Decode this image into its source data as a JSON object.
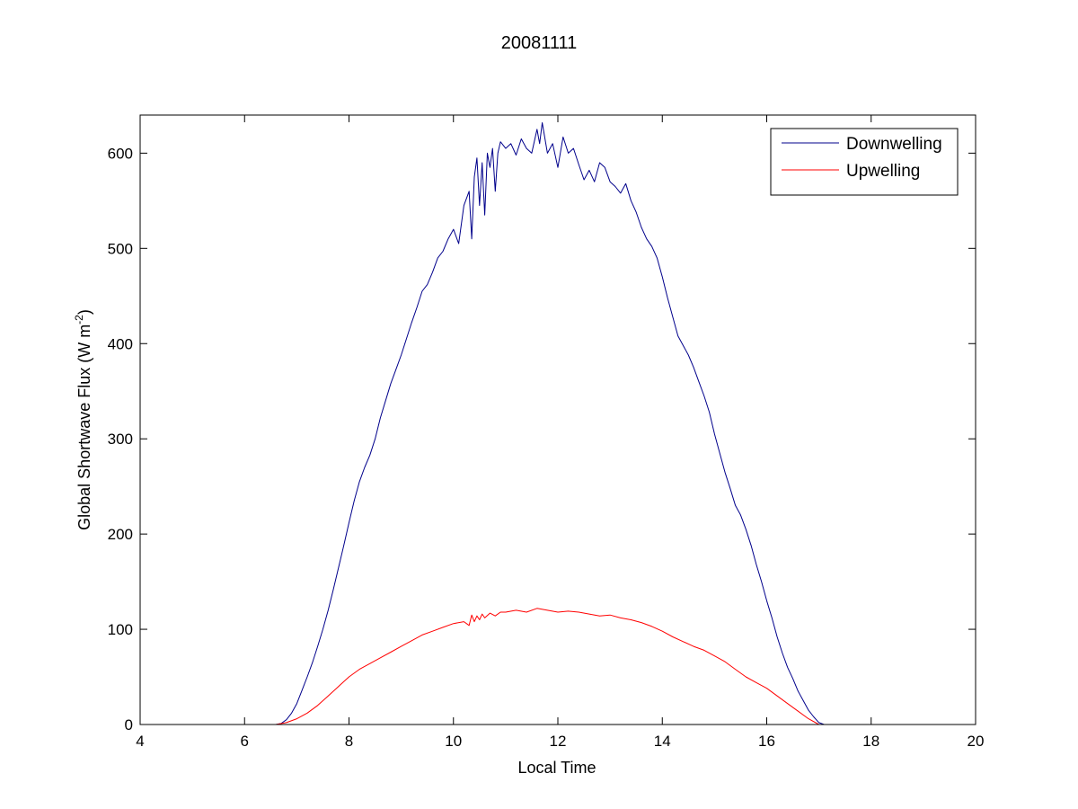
{
  "chart_data": {
    "type": "line",
    "title": "20081111",
    "xlabel": "Local Time",
    "ylabel": "Global Shortwave Flux (W m",
    "ylabel_sup": "-2",
    "ylabel_end": ")",
    "xlim": [
      4,
      20
    ],
    "ylim": [
      0,
      640
    ],
    "xticks": [
      4,
      6,
      8,
      10,
      12,
      14,
      16,
      18,
      20
    ],
    "yticks": [
      0,
      100,
      200,
      300,
      400,
      500,
      600
    ],
    "grid": false,
    "legend_position": "top-right",
    "series": [
      {
        "name": "Downwelling",
        "color": "#00008b",
        "x": [
          6.4,
          6.6,
          6.7,
          6.8,
          6.9,
          7.0,
          7.1,
          7.2,
          7.3,
          7.4,
          7.5,
          7.6,
          7.7,
          7.8,
          7.9,
          8.0,
          8.1,
          8.2,
          8.3,
          8.4,
          8.5,
          8.6,
          8.7,
          8.8,
          8.9,
          9.0,
          9.1,
          9.2,
          9.3,
          9.4,
          9.5,
          9.6,
          9.7,
          9.8,
          9.9,
          10.0,
          10.1,
          10.2,
          10.3,
          10.35,
          10.4,
          10.45,
          10.5,
          10.55,
          10.6,
          10.65,
          10.7,
          10.75,
          10.8,
          10.85,
          10.9,
          11.0,
          11.1,
          11.2,
          11.3,
          11.4,
          11.5,
          11.6,
          11.65,
          11.7,
          11.8,
          11.9,
          12.0,
          12.1,
          12.2,
          12.3,
          12.4,
          12.5,
          12.6,
          12.7,
          12.8,
          12.9,
          13.0,
          13.1,
          13.2,
          13.3,
          13.4,
          13.5,
          13.6,
          13.7,
          13.8,
          13.9,
          14.0,
          14.1,
          14.2,
          14.3,
          14.4,
          14.5,
          14.6,
          14.7,
          14.8,
          14.9,
          15.0,
          15.1,
          15.2,
          15.3,
          15.4,
          15.5,
          15.6,
          15.7,
          15.8,
          15.9,
          16.0,
          16.1,
          16.2,
          16.3,
          16.4,
          16.5,
          16.6,
          16.7,
          16.8,
          16.9,
          17.0,
          17.1,
          17.2,
          17.3
        ],
        "y": [
          0,
          0,
          1,
          5,
          12,
          22,
          36,
          50,
          65,
          82,
          100,
          120,
          142,
          165,
          188,
          212,
          235,
          255,
          270,
          283,
          300,
          322,
          340,
          358,
          373,
          388,
          405,
          422,
          438,
          455,
          462,
          475,
          490,
          497,
          510,
          520,
          505,
          545,
          560,
          510,
          575,
          595,
          545,
          590,
          535,
          600,
          585,
          605,
          560,
          600,
          612,
          605,
          610,
          598,
          615,
          605,
          600,
          625,
          610,
          632,
          600,
          610,
          585,
          617,
          600,
          605,
          588,
          572,
          582,
          570,
          590,
          585,
          570,
          565,
          558,
          568,
          550,
          538,
          522,
          510,
          502,
          490,
          470,
          448,
          428,
          408,
          398,
          388,
          375,
          360,
          345,
          328,
          305,
          285,
          265,
          248,
          230,
          220,
          205,
          188,
          168,
          150,
          130,
          112,
          92,
          75,
          60,
          48,
          35,
          25,
          15,
          8,
          2,
          0,
          0,
          0
        ]
      },
      {
        "name": "Upwelling",
        "color": "#ff0000",
        "x": [
          6.3,
          6.5,
          6.6,
          6.8,
          7.0,
          7.2,
          7.4,
          7.6,
          7.8,
          8.0,
          8.2,
          8.4,
          8.6,
          8.8,
          9.0,
          9.2,
          9.4,
          9.6,
          9.8,
          10.0,
          10.2,
          10.3,
          10.35,
          10.4,
          10.45,
          10.5,
          10.55,
          10.6,
          10.7,
          10.8,
          10.9,
          11.0,
          11.2,
          11.4,
          11.6,
          11.8,
          12.0,
          12.2,
          12.4,
          12.6,
          12.8,
          13.0,
          13.2,
          13.4,
          13.6,
          13.8,
          14.0,
          14.2,
          14.4,
          14.6,
          14.8,
          15.0,
          15.2,
          15.4,
          15.6,
          15.8,
          16.0,
          16.2,
          16.4,
          16.6,
          16.8,
          17.0,
          17.2
        ],
        "y": [
          0,
          0,
          0,
          2,
          6,
          12,
          20,
          30,
          40,
          50,
          58,
          64,
          70,
          76,
          82,
          88,
          94,
          98,
          102,
          106,
          108,
          104,
          115,
          108,
          114,
          110,
          116,
          112,
          117,
          114,
          118,
          118,
          120,
          118,
          122,
          120,
          118,
          119,
          118,
          116,
          114,
          115,
          112,
          110,
          107,
          103,
          98,
          92,
          87,
          82,
          78,
          72,
          66,
          58,
          50,
          44,
          38,
          30,
          22,
          14,
          6,
          0,
          0
        ]
      },
      {
        "name": "",
        "color": "#ff0000",
        "x": [
          19.45,
          19.7
        ],
        "y": [
          0,
          0
        ]
      }
    ]
  }
}
